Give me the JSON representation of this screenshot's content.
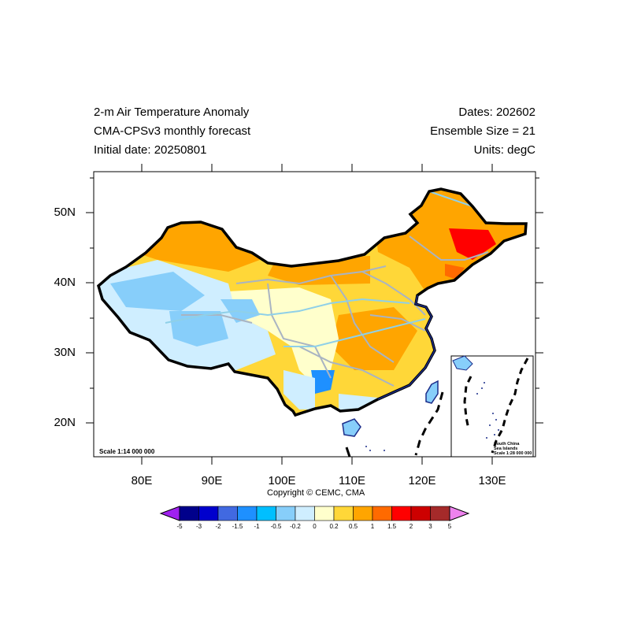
{
  "header": {
    "title_line1": "2-m Air Temperature Anomaly",
    "title_line2": "CMA-CPSv3 monthly forecast",
    "title_line3": "Initial date: 20250801",
    "dates": "Dates: 202602",
    "ensemble": "Ensemble Size = 21",
    "units": "Units: degC"
  },
  "axes": {
    "y_ticks": [
      "50N",
      "40N",
      "30N",
      "20N"
    ],
    "x_ticks": [
      "80E",
      "90E",
      "100E",
      "110E",
      "120E",
      "130E"
    ]
  },
  "map": {
    "scale_main": "Scale 1:14 000 000",
    "inset_line1": "South China",
    "inset_line2": "Sea Islands",
    "inset_line3": "Scale 1:28 000 000",
    "copyright": "Copyright © CEMC, CMA"
  },
  "colorbar": {
    "labels": [
      "-5",
      "-3",
      "-2",
      "-1.5",
      "-1",
      "-0.5",
      "-0.2",
      "0",
      "0.2",
      "0.5",
      "1",
      "1.5",
      "2",
      "3",
      "5"
    ],
    "colors": [
      "#a020f0",
      "#00008b",
      "#0000cd",
      "#4169e1",
      "#1e90ff",
      "#00bfff",
      "#87cefa",
      "#cfeeff",
      "#ffffcc",
      "#ffd738",
      "#ffa500",
      "#ff6a00",
      "#ff0000",
      "#cd0000",
      "#a52a2a",
      "#ee82ee"
    ]
  }
}
